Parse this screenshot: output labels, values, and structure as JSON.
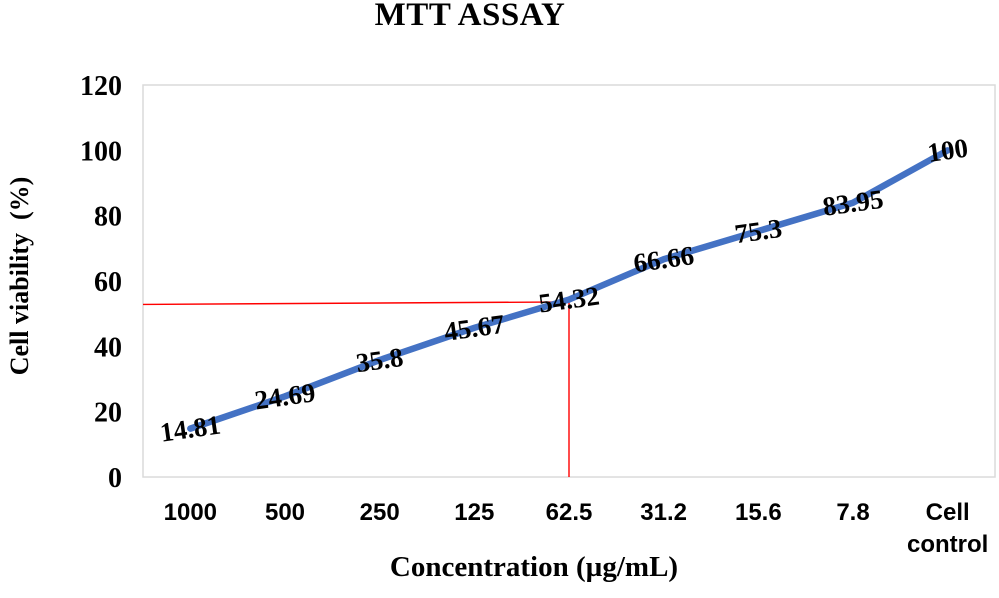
{
  "chart_data": {
    "type": "line",
    "title": "MTT ASSAY",
    "xlabel": "Concentration (µg/mL)",
    "ylabel": "Cell viability  (%)",
    "categories": [
      "1000",
      "500",
      "250",
      "125",
      "62.5",
      "31.2",
      "15.6",
      "7.8",
      "Cell control"
    ],
    "series": [
      {
        "name": "Cell viability",
        "values": [
          14.81,
          24.69,
          35.8,
          45.67,
          54.32,
          66.66,
          75.3,
          83.95,
          100
        ],
        "color": "#4472C4"
      }
    ],
    "point_labels": [
      "14.81",
      "24.69",
      "35.8",
      "45.67",
      "54.32",
      "66.66",
      "75.3",
      "83.95",
      "100"
    ],
    "ylim": [
      0,
      120
    ],
    "yticks": [
      "0",
      "20",
      "40",
      "60",
      "80",
      "100",
      "120"
    ],
    "grid": false,
    "legend_position": "none",
    "crosshair": {
      "category": "62.5",
      "category_index": 4,
      "value": 53.6,
      "color": "#FF0000"
    },
    "colors": {
      "line": "#4472C4",
      "text": "#000000",
      "plot_border": "#DADADA",
      "crosshair": "#FF0000",
      "background": "#FFFFFF"
    }
  }
}
